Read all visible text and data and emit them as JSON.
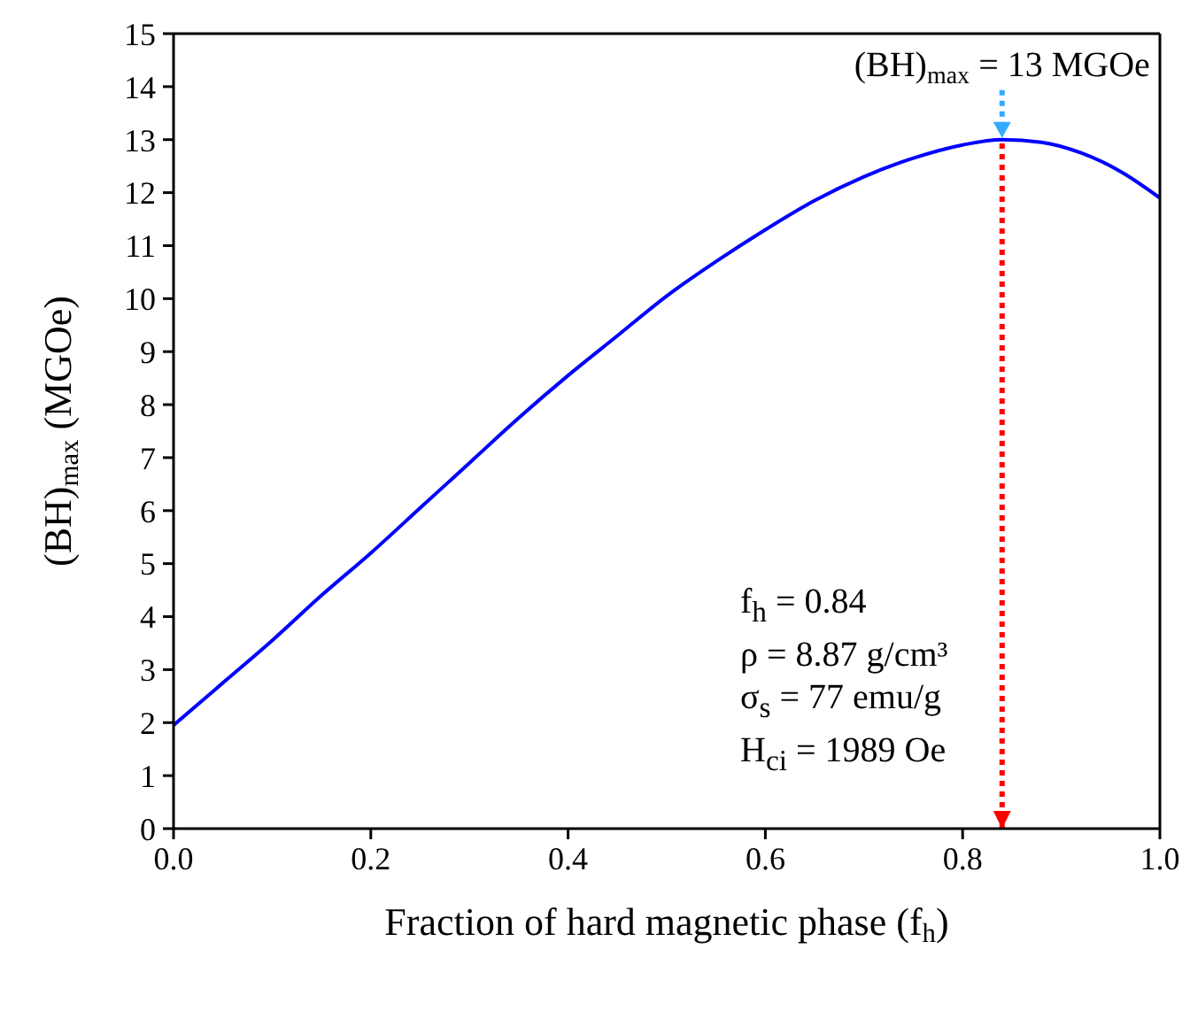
{
  "chart_data": {
    "type": "line",
    "xlabel": "Fraction of hard magnetic phase (f$_{h}$)",
    "ylabel": "(BH)$_{max}$ (MGOe)",
    "x": [
      0,
      0.05,
      0.1,
      0.15,
      0.2,
      0.25,
      0.3,
      0.35,
      0.4,
      0.45,
      0.5,
      0.55,
      0.6,
      0.65,
      0.7,
      0.75,
      0.8,
      0.84,
      0.88,
      0.92,
      0.96,
      1.0
    ],
    "series": [
      {
        "color": "#0000ff",
        "values": [
          1.95,
          2.75,
          3.55,
          4.4,
          5.2,
          6.05,
          6.9,
          7.75,
          8.55,
          9.3,
          10.05,
          10.7,
          11.3,
          11.85,
          12.3,
          12.65,
          12.9,
          13.0,
          12.95,
          12.75,
          12.4,
          11.9
        ]
      }
    ],
    "xlim": [
      0,
      1
    ],
    "ylim": [
      0,
      15
    ],
    "xticks": [
      {
        "value": 0,
        "label": "0.0"
      },
      {
        "value": 0.2,
        "label": "0.2"
      },
      {
        "value": 0.4,
        "label": "0.4"
      },
      {
        "value": 0.6,
        "label": "0.6"
      },
      {
        "value": 0.8,
        "label": "0.8"
      },
      {
        "value": 1,
        "label": "1.0"
      }
    ],
    "yticks": [
      0,
      1,
      2,
      3,
      4,
      5,
      6,
      7,
      8,
      9,
      10,
      11,
      12,
      13,
      14,
      15
    ],
    "ref_lines": [
      {
        "axis": "x",
        "value": 0.84,
        "color": "#ff0000",
        "line_style": "dotted"
      }
    ],
    "annotations": [
      {
        "text": "(BH)$_{max}$ = 13 MGOe",
        "x": 0.84,
        "y": 13
      },
      "f$_{h}$ = 0.84",
      "ρ = 8.87 g/cm³",
      "σ$_{s}$ = 77 emu/g",
      "H$_{ci}$ = 1989 Oe"
    ],
    "grid": false,
    "legend": false,
    "marker": "none",
    "line_style": "solid"
  }
}
